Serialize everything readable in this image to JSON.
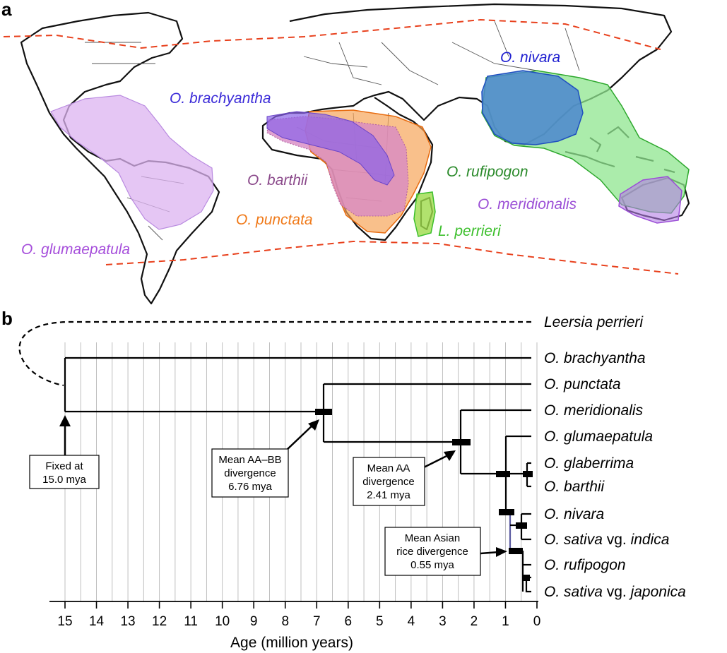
{
  "panel_labels": {
    "a": "a",
    "b": "b"
  },
  "map": {
    "labels": {
      "nivara": {
        "genus": "O.",
        "species": "nivara",
        "color": "#1f1fd0"
      },
      "brachyantha": {
        "genus": "O.",
        "species": "brachyantha",
        "color": "#3b2bd8"
      },
      "rufipogon": {
        "genus": "O.",
        "species": "rufipogon",
        "color": "#2a8a2a"
      },
      "barthii": {
        "genus": "O.",
        "species": "barthii",
        "color": "#8b4a8b"
      },
      "meridionalis": {
        "genus": "O.",
        "species": "meridionalis",
        "color": "#9b4ed6"
      },
      "punctata": {
        "genus": "O.",
        "species": "punctata",
        "color": "#f07a1a"
      },
      "perrieri": {
        "genus": "L.",
        "species": "perrieri",
        "color": "#3cbf2c"
      },
      "glumaepatula": {
        "genus": "O.",
        "species": "glumaepatula",
        "color": "#a64fdb"
      }
    },
    "range_colors": {
      "glumaepatula": "#dcb3f0",
      "brachyantha": "#8a63e8",
      "barthii": "#d889c4",
      "punctata": "#f7a55a",
      "perrieri": "#9edb4a",
      "nivara": "#4a86cf",
      "rufipogon": "#8fe58f",
      "meridionalis": "#b47ee6"
    }
  },
  "tree": {
    "taxa": [
      {
        "genus": "Leersia",
        "species": "perrieri",
        "suffix": "",
        "epithet": "",
        "dashed": true
      },
      {
        "genus": "O.",
        "species": "brachyantha",
        "suffix": "",
        "epithet": ""
      },
      {
        "genus": "O.",
        "species": "punctata",
        "suffix": "",
        "epithet": ""
      },
      {
        "genus": "O.",
        "species": "meridionalis",
        "suffix": "",
        "epithet": ""
      },
      {
        "genus": "O.",
        "species": "glumaepatula",
        "suffix": "",
        "epithet": ""
      },
      {
        "genus": "O.",
        "species": "glaberrima",
        "suffix": "",
        "epithet": ""
      },
      {
        "genus": "O.",
        "species": "barthii",
        "suffix": "",
        "epithet": ""
      },
      {
        "genus": "O.",
        "species": "nivara",
        "suffix": "",
        "epithet": ""
      },
      {
        "genus": "O.",
        "species": "sativa",
        "suffix": " vg. ",
        "epithet": "indica"
      },
      {
        "genus": "O.",
        "species": "rufipogon",
        "suffix": "",
        "epithet": ""
      },
      {
        "genus": "O.",
        "species": "sativa",
        "suffix": " vg. ",
        "epithet": "japonica"
      }
    ],
    "annotations": {
      "root": {
        "line1": "Fixed at",
        "line2": "15.0 mya"
      },
      "aabb": {
        "line1": "Mean AA–BB",
        "line2": "divergence",
        "line3": "6.76 mya"
      },
      "aa": {
        "line1": "Mean AA",
        "line2": "divergence",
        "line3": "2.41 mya"
      },
      "asian": {
        "line1": "Mean Asian",
        "line2": "rice divergence",
        "line3": "0.55 mya"
      }
    },
    "axis": {
      "title": "Age (million years)",
      "ticks": [
        "15",
        "14",
        "13",
        "12",
        "11",
        "10",
        "9",
        "8",
        "7",
        "6",
        "5",
        "4",
        "3",
        "2",
        "1",
        "0"
      ]
    }
  }
}
